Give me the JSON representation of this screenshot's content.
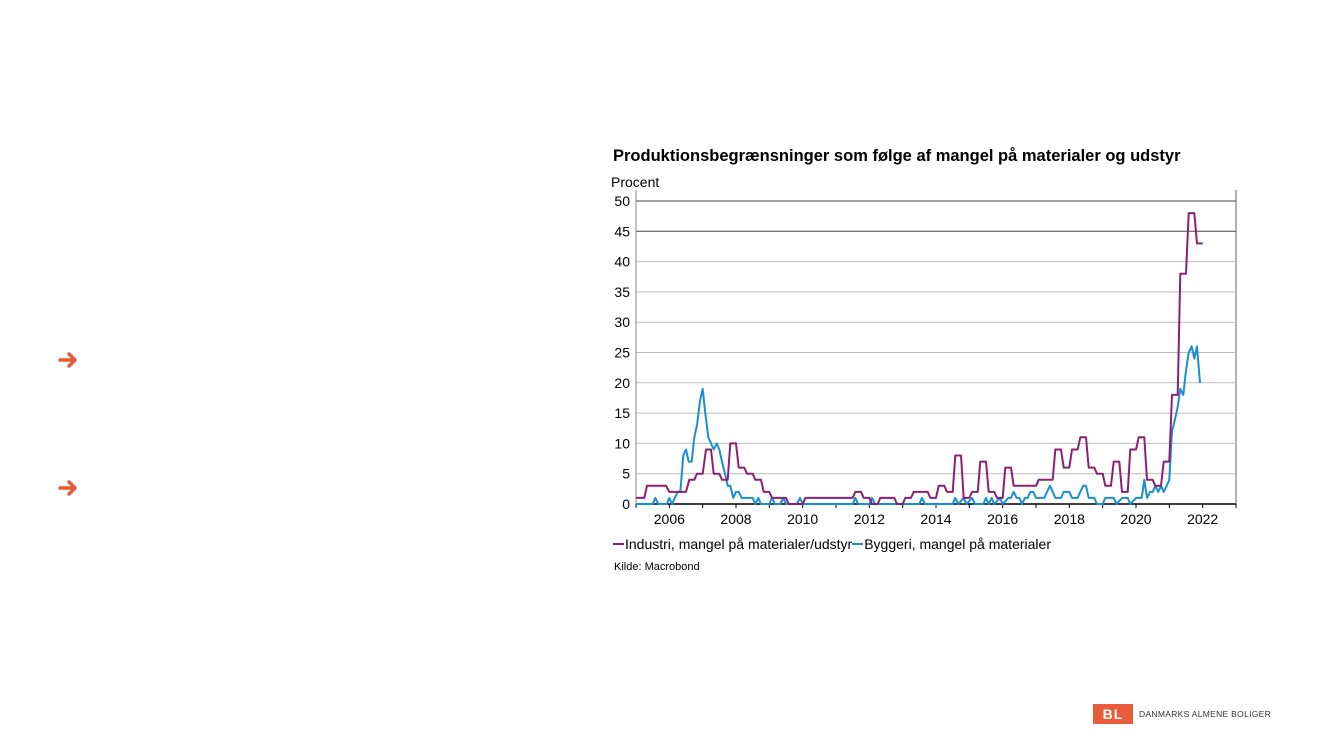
{
  "bullets": [
    {
      "icon": "arrow-right-icon",
      "color": "#e85b3b"
    },
    {
      "icon": "arrow-right-icon",
      "color": "#e85b3b"
    }
  ],
  "logo": {
    "mark": "BL",
    "name": "DANMARKS ALMENE BOLIGER",
    "color": "#e85b3b"
  },
  "chart_data": {
    "type": "line",
    "title": "Produktionsbegrænsninger som følge af mangel på materialer og udstyr",
    "ylabel": "Procent",
    "xlabel": "",
    "xlim": [
      2005,
      2023
    ],
    "ylim": [
      0,
      50
    ],
    "yticks": [
      "0",
      "5",
      "10",
      "15",
      "20",
      "25",
      "30",
      "35",
      "40",
      "45",
      "50"
    ],
    "xticks": [
      "2006",
      "2008",
      "2010",
      "2012",
      "2014",
      "2016",
      "2018",
      "2020",
      "2022"
    ],
    "grid": true,
    "legend_position": "bottom",
    "source": "Kilde: Macrobond",
    "series": [
      {
        "name": "Industri, mangel på materialer/udstyr",
        "color": "#8b2072",
        "points": [
          [
            2005,
            1
          ],
          [
            2005.25,
            1
          ],
          [
            2005.33,
            3
          ],
          [
            2005.5,
            3
          ],
          [
            2005.75,
            3
          ],
          [
            2005.9,
            3
          ],
          [
            2006,
            2
          ],
          [
            2006.25,
            2
          ],
          [
            2006.5,
            2
          ],
          [
            2006.6,
            4
          ],
          [
            2006.75,
            4
          ],
          [
            2006.83,
            5
          ],
          [
            2007,
            5
          ],
          [
            2007.1,
            9
          ],
          [
            2007.25,
            9
          ],
          [
            2007.33,
            5
          ],
          [
            2007.5,
            5
          ],
          [
            2007.58,
            4
          ],
          [
            2007.75,
            4
          ],
          [
            2007.83,
            10
          ],
          [
            2008,
            10
          ],
          [
            2008.08,
            6
          ],
          [
            2008.25,
            6
          ],
          [
            2008.33,
            5
          ],
          [
            2008.5,
            5
          ],
          [
            2008.58,
            4
          ],
          [
            2008.75,
            4
          ],
          [
            2008.83,
            2
          ],
          [
            2009,
            2
          ],
          [
            2009.08,
            1
          ],
          [
            2009.25,
            1
          ],
          [
            2009.5,
            1
          ],
          [
            2009.58,
            0
          ],
          [
            2009.75,
            0
          ],
          [
            2010,
            0
          ],
          [
            2010.08,
            1
          ],
          [
            2010.5,
            1
          ],
          [
            2010.75,
            1
          ],
          [
            2011,
            1
          ],
          [
            2011.5,
            1
          ],
          [
            2011.58,
            2
          ],
          [
            2011.75,
            2
          ],
          [
            2011.83,
            1
          ],
          [
            2012,
            1
          ],
          [
            2012.08,
            0
          ],
          [
            2012.25,
            0
          ],
          [
            2012.33,
            1
          ],
          [
            2012.75,
            1
          ],
          [
            2012.83,
            0
          ],
          [
            2013,
            0
          ],
          [
            2013.08,
            1
          ],
          [
            2013.25,
            1
          ],
          [
            2013.33,
            2
          ],
          [
            2013.75,
            2
          ],
          [
            2013.83,
            1
          ],
          [
            2014,
            1
          ],
          [
            2014.08,
            3
          ],
          [
            2014.25,
            3
          ],
          [
            2014.33,
            2
          ],
          [
            2014.5,
            2
          ],
          [
            2014.58,
            8
          ],
          [
            2014.75,
            8
          ],
          [
            2014.83,
            1
          ],
          [
            2015,
            1
          ],
          [
            2015.08,
            2
          ],
          [
            2015.25,
            2
          ],
          [
            2015.33,
            7
          ],
          [
            2015.5,
            7
          ],
          [
            2015.58,
            2
          ],
          [
            2015.75,
            2
          ],
          [
            2015.83,
            1
          ],
          [
            2016,
            1
          ],
          [
            2016.08,
            6
          ],
          [
            2016.25,
            6
          ],
          [
            2016.33,
            3
          ],
          [
            2016.5,
            3
          ],
          [
            2016.75,
            3
          ],
          [
            2016.83,
            3
          ],
          [
            2017,
            3
          ],
          [
            2017.08,
            4
          ],
          [
            2017.25,
            4
          ],
          [
            2017.5,
            4
          ],
          [
            2017.58,
            9
          ],
          [
            2017.75,
            9
          ],
          [
            2017.83,
            6
          ],
          [
            2018,
            6
          ],
          [
            2018.08,
            9
          ],
          [
            2018.25,
            9
          ],
          [
            2018.33,
            11
          ],
          [
            2018.5,
            11
          ],
          [
            2018.58,
            6
          ],
          [
            2018.75,
            6
          ],
          [
            2018.83,
            5
          ],
          [
            2019,
            5
          ],
          [
            2019.08,
            3
          ],
          [
            2019.25,
            3
          ],
          [
            2019.33,
            7
          ],
          [
            2019.5,
            7
          ],
          [
            2019.58,
            2
          ],
          [
            2019.75,
            2
          ],
          [
            2019.83,
            9
          ],
          [
            2020,
            9
          ],
          [
            2020.08,
            11
          ],
          [
            2020.25,
            11
          ],
          [
            2020.33,
            4
          ],
          [
            2020.5,
            4
          ],
          [
            2020.58,
            3
          ],
          [
            2020.75,
            3
          ],
          [
            2020.83,
            7
          ],
          [
            2021,
            7
          ],
          [
            2021.08,
            18
          ],
          [
            2021.25,
            18
          ],
          [
            2021.33,
            38
          ],
          [
            2021.5,
            38
          ],
          [
            2021.58,
            48
          ],
          [
            2021.75,
            48
          ],
          [
            2021.83,
            43
          ],
          [
            2022,
            43
          ]
        ]
      },
      {
        "name": "Byggeri, mangel på materialer",
        "color": "#1a8fcf",
        "points": [
          [
            2005,
            0
          ],
          [
            2005.5,
            0
          ],
          [
            2005.58,
            1
          ],
          [
            2005.67,
            0
          ],
          [
            2005.92,
            0
          ],
          [
            2006,
            1
          ],
          [
            2006.08,
            0
          ],
          [
            2006.25,
            2
          ],
          [
            2006.33,
            2
          ],
          [
            2006.42,
            8
          ],
          [
            2006.5,
            9
          ],
          [
            2006.58,
            7
          ],
          [
            2006.67,
            7
          ],
          [
            2006.75,
            11
          ],
          [
            2006.83,
            13
          ],
          [
            2006.92,
            17
          ],
          [
            2007,
            19
          ],
          [
            2007.08,
            15
          ],
          [
            2007.17,
            11
          ],
          [
            2007.25,
            10
          ],
          [
            2007.33,
            9
          ],
          [
            2007.42,
            10
          ],
          [
            2007.5,
            9
          ],
          [
            2007.58,
            7
          ],
          [
            2007.67,
            5
          ],
          [
            2007.75,
            3
          ],
          [
            2007.83,
            3
          ],
          [
            2007.92,
            1
          ],
          [
            2008,
            2
          ],
          [
            2008.08,
            2
          ],
          [
            2008.17,
            1
          ],
          [
            2008.25,
            1
          ],
          [
            2008.5,
            1
          ],
          [
            2008.58,
            0
          ],
          [
            2008.67,
            1
          ],
          [
            2008.75,
            0
          ],
          [
            2009,
            0
          ],
          [
            2009.08,
            1
          ],
          [
            2009.17,
            0
          ],
          [
            2009.33,
            0
          ],
          [
            2009.42,
            1
          ],
          [
            2009.5,
            0
          ],
          [
            2009.83,
            0
          ],
          [
            2009.92,
            1
          ],
          [
            2010,
            0
          ],
          [
            2011,
            0
          ],
          [
            2011.5,
            0
          ],
          [
            2011.58,
            1
          ],
          [
            2011.67,
            0
          ],
          [
            2012,
            0
          ],
          [
            2012.08,
            1
          ],
          [
            2012.17,
            0
          ],
          [
            2013,
            0
          ],
          [
            2013.5,
            0
          ],
          [
            2013.58,
            1
          ],
          [
            2013.67,
            0
          ],
          [
            2014,
            0
          ],
          [
            2014.5,
            0
          ],
          [
            2014.58,
            1
          ],
          [
            2014.67,
            0
          ],
          [
            2014.83,
            1
          ],
          [
            2014.92,
            0
          ],
          [
            2015.08,
            1
          ],
          [
            2015.17,
            0
          ],
          [
            2015.42,
            0
          ],
          [
            2015.5,
            1
          ],
          [
            2015.58,
            0
          ],
          [
            2015.67,
            1
          ],
          [
            2015.75,
            0
          ],
          [
            2015.92,
            1
          ],
          [
            2016,
            0
          ],
          [
            2016.17,
            1
          ],
          [
            2016.25,
            1
          ],
          [
            2016.33,
            2
          ],
          [
            2016.42,
            1
          ],
          [
            2016.5,
            1
          ],
          [
            2016.58,
            0
          ],
          [
            2016.67,
            1
          ],
          [
            2016.75,
            1
          ],
          [
            2016.83,
            2
          ],
          [
            2016.92,
            2
          ],
          [
            2017,
            1
          ],
          [
            2017.25,
            1
          ],
          [
            2017.33,
            2
          ],
          [
            2017.42,
            3
          ],
          [
            2017.5,
            2
          ],
          [
            2017.58,
            1
          ],
          [
            2017.75,
            1
          ],
          [
            2017.83,
            2
          ],
          [
            2018,
            2
          ],
          [
            2018.08,
            1
          ],
          [
            2018.25,
            1
          ],
          [
            2018.33,
            2
          ],
          [
            2018.42,
            3
          ],
          [
            2018.5,
            3
          ],
          [
            2018.58,
            1
          ],
          [
            2018.75,
            1
          ],
          [
            2018.83,
            0
          ],
          [
            2019,
            0
          ],
          [
            2019.08,
            1
          ],
          [
            2019.33,
            1
          ],
          [
            2019.42,
            0
          ],
          [
            2019.58,
            1
          ],
          [
            2019.75,
            1
          ],
          [
            2019.83,
            0
          ],
          [
            2020,
            1
          ],
          [
            2020.17,
            1
          ],
          [
            2020.25,
            4
          ],
          [
            2020.33,
            1
          ],
          [
            2020.42,
            2
          ],
          [
            2020.5,
            2
          ],
          [
            2020.58,
            3
          ],
          [
            2020.67,
            2
          ],
          [
            2020.75,
            3
          ],
          [
            2020.83,
            2
          ],
          [
            2020.92,
            3
          ],
          [
            2021,
            4
          ],
          [
            2021.08,
            12
          ],
          [
            2021.17,
            14
          ],
          [
            2021.25,
            16
          ],
          [
            2021.33,
            19
          ],
          [
            2021.42,
            18
          ],
          [
            2021.5,
            22
          ],
          [
            2021.58,
            25
          ],
          [
            2021.67,
            26
          ],
          [
            2021.75,
            24
          ],
          [
            2021.83,
            26
          ],
          [
            2021.92,
            20
          ]
        ]
      }
    ]
  }
}
